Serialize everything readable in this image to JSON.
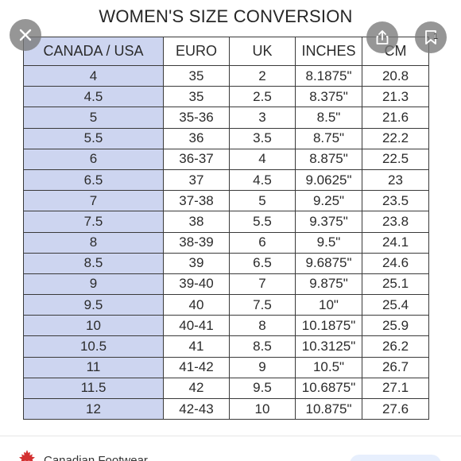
{
  "chart_data": {
    "type": "table",
    "title": "WOMEN'S SIZE CONVERSION",
    "columns": [
      "CANADA / USA",
      "EURO",
      "UK",
      "INCHES",
      "CM"
    ],
    "rows": [
      [
        "4",
        "35",
        "2",
        "8.1875\"",
        "20.8"
      ],
      [
        "4.5",
        "35",
        "2.5",
        "8.375\"",
        "21.3"
      ],
      [
        "5",
        "35-36",
        "3",
        "8.5\"",
        "21.6"
      ],
      [
        "5.5",
        "36",
        "3.5",
        "8.75\"",
        "22.2"
      ],
      [
        "6",
        "36-37",
        "4",
        "8.875\"",
        "22.5"
      ],
      [
        "6.5",
        "37",
        "4.5",
        "9.0625\"",
        "23"
      ],
      [
        "7",
        "37-38",
        "5",
        "9.25\"",
        "23.5"
      ],
      [
        "7.5",
        "38",
        "5.5",
        "9.375\"",
        "23.8"
      ],
      [
        "8",
        "38-39",
        "6",
        "9.5\"",
        "24.1"
      ],
      [
        "8.5",
        "39",
        "6.5",
        "9.6875\"",
        "24.6"
      ],
      [
        "9",
        "39-40",
        "7",
        "9.875\"",
        "25.1"
      ],
      [
        "9.5",
        "40",
        "7.5",
        "10\"",
        "25.4"
      ],
      [
        "10",
        "40-41",
        "8",
        "10.1875\"",
        "25.9"
      ],
      [
        "10.5",
        "41",
        "8.5",
        "10.3125\"",
        "26.2"
      ],
      [
        "11",
        "41-42",
        "9",
        "10.5\"",
        "26.7"
      ],
      [
        "11.5",
        "42",
        "9.5",
        "10.6875\"",
        "27.1"
      ],
      [
        "12",
        "42-43",
        "10",
        "10.875\"",
        "27.6"
      ]
    ]
  },
  "viewer": {
    "close_icon": "close-icon",
    "share_icon": "share-icon",
    "bookmark_icon": "bookmark-icon",
    "count": "1"
  },
  "source": {
    "name": "Canadian Footwear",
    "icon": "maple-leaf-icon",
    "accent": "#d32f2f"
  },
  "colors": {
    "first_column_bg": "#cdd5f0",
    "overlay_button_bg": "#787878"
  }
}
